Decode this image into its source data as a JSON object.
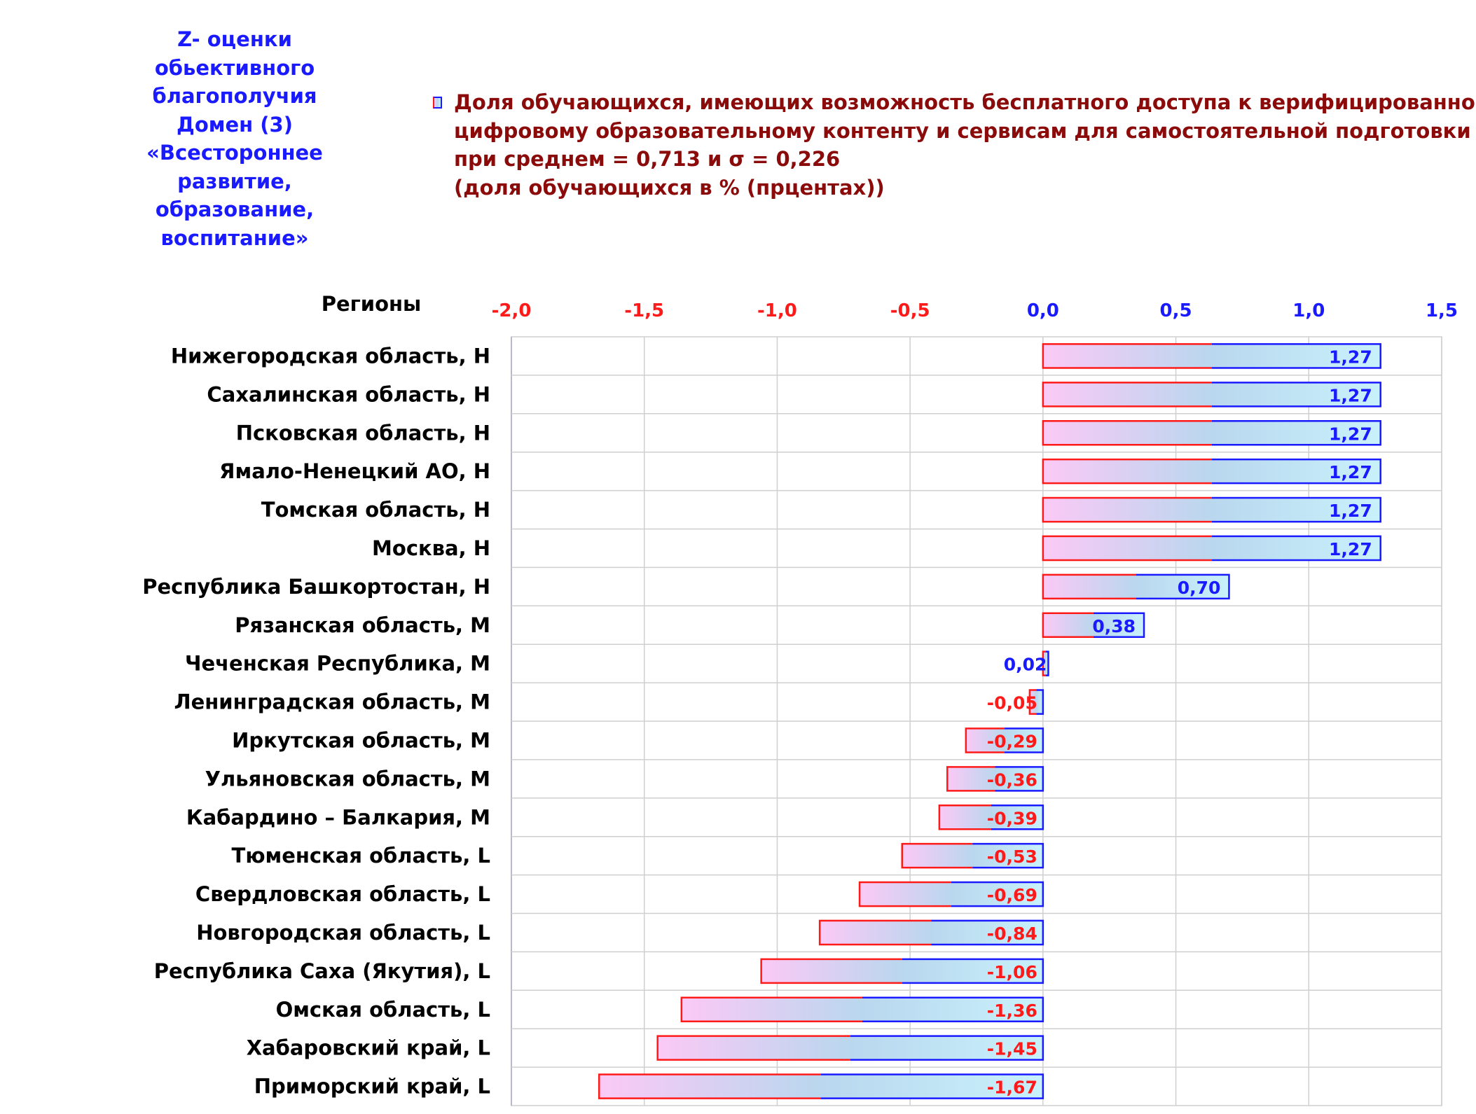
{
  "side_title": [
    "Z- оценки",
    "обьективного",
    "благополучия",
    "Домен (3)",
    "«Всестороннее",
    "развитие,",
    "образование,",
    "воспитание»"
  ],
  "legend": {
    "lines": [
      "Доля обучающихся, имеющих возможность бесплатного доступа к верифицированному",
      "цифровому образовательному контенту и сервисам для самостоятельной подготовки",
      "при среднем = 0,713  и σ = 0,226",
      "(доля обучающихся в % (прцентах))"
    ]
  },
  "colors": {
    "negative": "#ff1a1a",
    "positive": "#1a1aff",
    "title": "#1a1aff",
    "legend_text": "#8b0a0a",
    "grad_start": "#fbc9f6",
    "grad_mid": "#b9d7ee",
    "grad_end": "#c8f1fb",
    "grid": "#cfcfcf"
  },
  "chart_data": {
    "type": "bar",
    "orientation": "horizontal",
    "ylabel": "Регионы",
    "xlim": [
      -2.0,
      1.5
    ],
    "x_ticks": [
      -2.0,
      -1.5,
      -1.0,
      -0.5,
      0.0,
      0.5,
      1.0,
      1.5
    ],
    "x_tick_labels": [
      "-2,0",
      "-1,5",
      "-1,0",
      "-0,5",
      "0,0",
      "0,5",
      "1,0",
      "1,5"
    ],
    "axis_position": "top",
    "grid": true,
    "categories": [
      "Нижегородская область,  H",
      "Сахалинская область,  H",
      "Псковская область,  H",
      "Ямало-Ненецкий АО,  H",
      "Томская область,  H",
      "Москва,  H",
      "Республика Башкортостан,  H",
      "Рязанская область,  M",
      "Чеченская Республика,  M",
      "Ленинградская область,  M",
      "Иркутская область,  M",
      "Ульяновская область,  M",
      "Кабардино – Балкария,  M",
      "Тюменская область,  L",
      "Свердловская область,  L",
      "Новгородская область,  L",
      "Республика Саха (Якутия),  L",
      "Омская область,  L",
      "Хабаровский край,  L",
      "Приморский край,  L"
    ],
    "values": [
      1.27,
      1.27,
      1.27,
      1.27,
      1.27,
      1.27,
      0.7,
      0.38,
      0.02,
      -0.05,
      -0.29,
      -0.36,
      -0.39,
      -0.53,
      -0.69,
      -0.84,
      -1.06,
      -1.36,
      -1.45,
      -1.67
    ],
    "value_labels": [
      "1,27",
      "1,27",
      "1,27",
      "1,27",
      "1,27",
      "1,27",
      "0,70",
      "0,38",
      "0,02",
      "-0,05",
      "-0,29",
      "-0,36",
      "-0,39",
      "-0,53",
      "-0,69",
      "-0,84",
      "-1,06",
      "-1,36",
      "-1,45",
      "-1,67"
    ]
  }
}
